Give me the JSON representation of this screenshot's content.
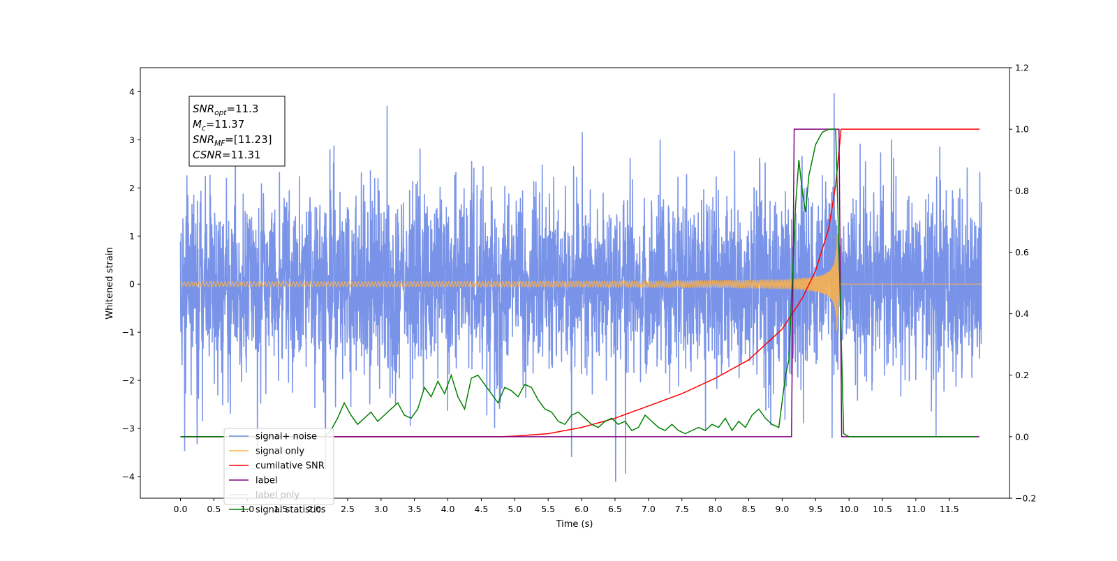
{
  "chart_data": {
    "type": "line",
    "xlabel": "Time (s)",
    "ylabel": "Whitened strain",
    "y2label": "",
    "xlim": [
      -0.6,
      12.4
    ],
    "ylim": [
      -4.45,
      4.5
    ],
    "y2lim": [
      -0.2,
      1.2
    ],
    "x_ticks": [
      0.0,
      0.5,
      1.0,
      1.5,
      2.0,
      2.5,
      3.0,
      3.5,
      4.0,
      4.5,
      5.0,
      5.5,
      6.0,
      6.5,
      7.0,
      7.5,
      8.0,
      8.5,
      9.0,
      9.5,
      10.0,
      10.5,
      11.0,
      11.5
    ],
    "x_tick_labels": [
      "0.0",
      "0.5",
      "1.0",
      "1.5",
      "2.0",
      "2.5",
      "3.0",
      "3.5",
      "4.0",
      "4.5",
      "5.0",
      "5.5",
      "6.0",
      "6.5",
      "7.0",
      "7.5",
      "8.0",
      "8.5",
      "9.0",
      "9.5",
      "10.0",
      "10.5",
      "11.0",
      "11.5"
    ],
    "y_ticks": [
      4,
      3,
      2,
      1,
      0,
      -1,
      -2,
      -3,
      -4
    ],
    "y_tick_labels": [
      "4",
      "3",
      "2",
      "1",
      "0",
      "−1",
      "−2",
      "−3",
      "−4"
    ],
    "y2_ticks": [
      1.2,
      1.0,
      0.8,
      0.6,
      0.4,
      0.2,
      0.0,
      -0.2
    ],
    "y2_tick_labels": [
      "1.2",
      "1.0",
      "0.8",
      "0.6",
      "0.4",
      "0.2",
      "0.0",
      "−0.2"
    ],
    "grid": false,
    "legend_position": "lower-left",
    "series": [
      {
        "name": "signal+ noise",
        "axis": "left",
        "color": "#6f8be6",
        "description": "white noise, std ~0.95, t 0–12 s"
      },
      {
        "name": "signal only",
        "axis": "left",
        "color": "#ffb347",
        "description": "chirp, amplitude rising to ~1.0 at t=9.83 s, then 0"
      },
      {
        "name": "cumilative SNR",
        "axis": "right",
        "x": [
          0.0,
          4.8,
          5.0,
          5.5,
          6.0,
          6.5,
          7.0,
          7.5,
          8.0,
          8.5,
          9.0,
          9.3,
          9.5,
          9.7,
          9.8,
          9.86,
          9.88,
          11.95
        ],
        "values": [
          0.0,
          0.0,
          0.002,
          0.01,
          0.03,
          0.06,
          0.1,
          0.14,
          0.19,
          0.25,
          0.35,
          0.45,
          0.54,
          0.68,
          0.82,
          0.95,
          1.0,
          1.0
        ],
        "color": "#ff0000"
      },
      {
        "name": "label",
        "axis": "right",
        "x": [
          0.0,
          9.14,
          9.18,
          9.85,
          9.89,
          11.95
        ],
        "values": [
          0.0,
          0.0,
          1.0,
          1.0,
          0.0,
          0.0
        ],
        "color": "#800080"
      },
      {
        "name": "label only",
        "axis": "right",
        "color": "#d8b0d8",
        "hidden": true
      },
      {
        "name": "signal statistics",
        "axis": "right",
        "x": [
          0.0,
          2.15,
          2.25,
          2.35,
          2.45,
          2.55,
          2.65,
          2.75,
          2.85,
          2.95,
          3.05,
          3.15,
          3.25,
          3.35,
          3.45,
          3.55,
          3.65,
          3.75,
          3.85,
          3.95,
          4.05,
          4.15,
          4.25,
          4.35,
          4.45,
          4.55,
          4.65,
          4.75,
          4.85,
          4.95,
          5.05,
          5.15,
          5.25,
          5.35,
          5.45,
          5.55,
          5.65,
          5.75,
          5.85,
          5.95,
          6.05,
          6.15,
          6.25,
          6.35,
          6.45,
          6.55,
          6.65,
          6.75,
          6.85,
          6.95,
          7.05,
          7.15,
          7.25,
          7.35,
          7.45,
          7.55,
          7.65,
          7.75,
          7.85,
          7.95,
          8.05,
          8.15,
          8.25,
          8.35,
          8.45,
          8.55,
          8.65,
          8.75,
          8.85,
          8.95,
          9.05,
          9.1,
          9.2,
          9.25,
          9.3,
          9.35,
          9.4,
          9.5,
          9.6,
          9.7,
          9.8,
          9.85,
          9.92,
          10.0,
          11.9
        ],
        "values": [
          0.0,
          0.0,
          0.02,
          0.06,
          0.11,
          0.07,
          0.04,
          0.06,
          0.08,
          0.05,
          0.07,
          0.09,
          0.11,
          0.07,
          0.06,
          0.09,
          0.16,
          0.13,
          0.18,
          0.14,
          0.2,
          0.13,
          0.09,
          0.19,
          0.2,
          0.17,
          0.14,
          0.11,
          0.16,
          0.15,
          0.13,
          0.17,
          0.16,
          0.12,
          0.09,
          0.08,
          0.05,
          0.04,
          0.07,
          0.08,
          0.06,
          0.04,
          0.03,
          0.05,
          0.06,
          0.04,
          0.05,
          0.02,
          0.03,
          0.07,
          0.05,
          0.03,
          0.02,
          0.04,
          0.02,
          0.01,
          0.02,
          0.03,
          0.02,
          0.04,
          0.03,
          0.06,
          0.02,
          0.05,
          0.03,
          0.07,
          0.09,
          0.06,
          0.04,
          0.03,
          0.2,
          0.25,
          0.75,
          0.9,
          0.8,
          0.73,
          0.85,
          0.95,
          0.99,
          1.0,
          1.0,
          0.6,
          0.01,
          0.0,
          0.0
        ],
        "color": "#008000"
      }
    ],
    "annotation": {
      "lines": [
        {
          "main": "SNR",
          "sub": "opt",
          "value": "=11.3"
        },
        {
          "main": "M",
          "sub": "c",
          "value": "=11.37"
        },
        {
          "main": "SNR",
          "sub": "MF",
          "value": "=[11.23]"
        },
        {
          "main": "CSNR",
          "sub": "",
          "value": "=11.31"
        }
      ]
    }
  }
}
